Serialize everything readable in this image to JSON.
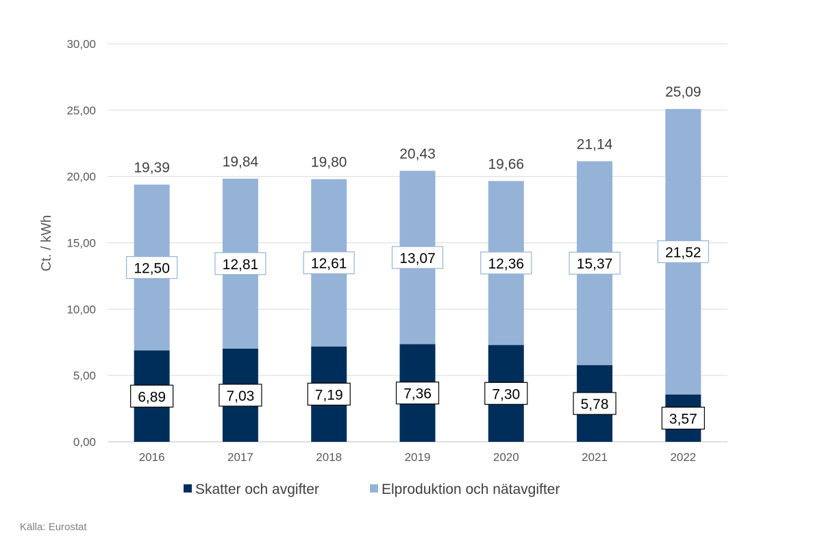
{
  "chart_data": {
    "type": "bar",
    "stacked": true,
    "categories": [
      "2016",
      "2017",
      "2018",
      "2019",
      "2020",
      "2021",
      "2022"
    ],
    "series": [
      {
        "name": "Skatter och avgifter",
        "color": "#002e5a",
        "values": [
          6.89,
          7.03,
          7.19,
          7.36,
          7.3,
          5.78,
          3.57
        ],
        "labels": [
          "6,89",
          "7,03",
          "7,19",
          "7,36",
          "7,30",
          "5,78",
          "3,57"
        ]
      },
      {
        "name": "Elproduktion och nätavgifter",
        "color": "#95b3d7",
        "values": [
          12.5,
          12.81,
          12.61,
          13.07,
          12.36,
          15.37,
          21.52
        ],
        "labels": [
          "12,50",
          "12,81",
          "12,61",
          "13,07",
          "12,36",
          "15,37",
          "21,52"
        ]
      }
    ],
    "totals": [
      19.39,
      19.84,
      19.8,
      20.43,
      19.66,
      21.14,
      25.09
    ],
    "total_labels": [
      "19,39",
      "19,84",
      "19,80",
      "20,43",
      "19,66",
      "21,14",
      "25,09"
    ],
    "ylabel": "Ct. / kWh",
    "xlabel": "",
    "ylim": [
      0,
      30
    ],
    "yticks": [
      0,
      5,
      10,
      15,
      20,
      25,
      30
    ],
    "ytick_labels": [
      "0,00",
      "5,00",
      "10,00",
      "15,00",
      "20,00",
      "25,00",
      "30,00"
    ],
    "grid": true,
    "legend_position": "bottom"
  },
  "source": "Källa: Eurostat"
}
